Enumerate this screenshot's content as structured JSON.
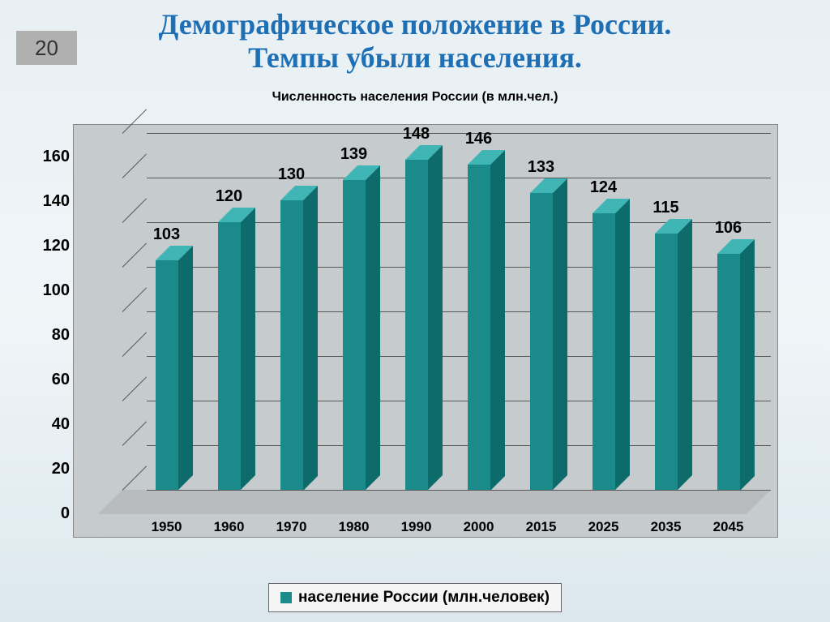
{
  "page_number": "20",
  "title_line1": "Демографическое положение в России.",
  "title_line2": "Темпы убыли населения.",
  "chart": {
    "type": "bar",
    "title": "Численность населения России (в млн.чел.)",
    "categories": [
      "1950",
      "1960",
      "1970",
      "1980",
      "1990",
      "2000",
      "2015",
      "2025",
      "2035",
      "2045"
    ],
    "values": [
      103,
      120,
      130,
      139,
      148,
      146,
      133,
      124,
      115,
      106
    ],
    "bar_front_color": "#1a8a8a",
    "bar_top_color": "#3fb5b5",
    "bar_side_color": "#0d6b6b",
    "ylim": [
      0,
      160
    ],
    "ytick_step": 20,
    "yticks": [
      0,
      20,
      40,
      60,
      80,
      100,
      120,
      140,
      160
    ],
    "grid_color": "#555555",
    "plot_bg": "#c6cbce",
    "tick_fontsize": 20,
    "label_fontsize": 20,
    "legend_label": "население России (млн.человек)",
    "legend_swatch_color": "#1a8a8a",
    "title_color": "#1f6fb5",
    "title_fontsize": 36,
    "chart_title_fontsize": 16
  }
}
